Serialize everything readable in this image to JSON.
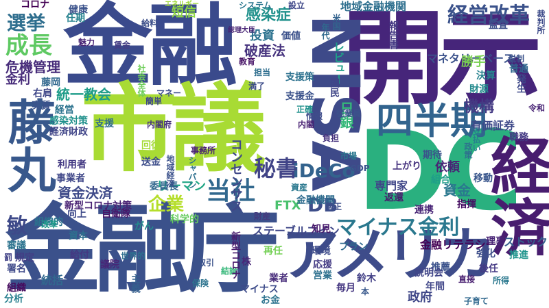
{
  "cloud": {
    "words": [
      {
        "text": "金融",
        "color": "#3a4a8c"
      },
      {
        "text": "開示",
        "color": "#46257a"
      },
      {
        "text": "市議",
        "color": "#a8db34"
      },
      {
        "text": "DC",
        "color": "#2ab07f"
      },
      {
        "text": "金融庁",
        "color": "#3b518b"
      },
      {
        "text": "NISA",
        "color": "#3e4a89"
      },
      {
        "text": "経済",
        "color": "#481d6f"
      },
      {
        "text": "アメリカ",
        "color": "#3e4c8a"
      },
      {
        "text": "藤丸",
        "color": "#38588c"
      },
      {
        "text": "四半期",
        "color": "#32648e"
      },
      {
        "text": "経営改革",
        "color": "#3b528b"
      },
      {
        "text": "マイナス金利",
        "color": "#2a788e"
      },
      {
        "text": "iDeCo",
        "color": "#33638d"
      },
      {
        "text": "秘書",
        "color": "#414487"
      },
      {
        "text": "当社",
        "color": "#31688e"
      },
      {
        "text": "DB",
        "color": "#3d4e8a"
      },
      {
        "text": "企業",
        "color": "#b5de2b"
      },
      {
        "text": "成長",
        "color": "#5ec962"
      },
      {
        "text": "選挙",
        "color": "#2e6e8e"
      },
      {
        "text": "地域金融機関",
        "color": "#2e6f8e"
      },
      {
        "text": "マネタリーベース",
        "color": "#3b528b"
      },
      {
        "text": "危機管理",
        "color": "#472c7a"
      },
      {
        "text": "感染症",
        "color": "#21918c"
      },
      {
        "text": "破産法",
        "color": "#46337e"
      },
      {
        "text": "投資",
        "color": "#2c728e"
      },
      {
        "text": "短信",
        "color": "#8fd744"
      },
      {
        "text": "統一教会",
        "color": "#1e9c89"
      },
      {
        "text": "敏",
        "color": "#3e4989"
      },
      {
        "text": "機構",
        "color": "#443a83"
      },
      {
        "text": "日銀",
        "color": "#35b779"
      },
      {
        "text": "資金決済",
        "color": "#3e4a89"
      },
      {
        "text": "コンセンサス",
        "color": "#3f4788"
      },
      {
        "text": "FTX",
        "color": "#4ac16d"
      },
      {
        "text": "金利",
        "color": "#472c7a"
      },
      {
        "text": "勝手",
        "color": "#7ad151"
      },
      {
        "text": "レビュー",
        "color": "#1fa088"
      },
      {
        "text": "有価証券",
        "color": "#3e4989"
      },
      {
        "text": "ステーブルコイン",
        "color": "#3f4788"
      },
      {
        "text": "新型コロナ対策",
        "color": "#482173"
      },
      {
        "text": "金融リテラシー",
        "color": "#440154"
      },
      {
        "text": "リーマン",
        "color": "#21a685"
      },
      {
        "text": "健康",
        "color": "#3b528b"
      },
      {
        "text": "コロナ",
        "color": "#440154"
      },
      {
        "text": "任期",
        "color": "#26828e"
      },
      {
        "text": "株",
        "color": "#482878"
      },
      {
        "text": "政府",
        "color": "#3f4788"
      },
      {
        "text": "資金",
        "color": "#2a788e"
      },
      {
        "text": "依頼",
        "color": "#482475"
      },
      {
        "text": "組合",
        "color": "#1f9e89"
      },
      {
        "text": "移動",
        "color": "#39568c"
      },
      {
        "text": "返還",
        "color": "#481b6d"
      },
      {
        "text": "専門家",
        "color": "#404688"
      },
      {
        "text": "指揮",
        "color": "#471063"
      },
      {
        "text": "ストック",
        "color": "#35608d"
      },
      {
        "text": "推進",
        "color": "#1f948c"
      },
      {
        "text": "強化",
        "color": "#3d4e8a"
      },
      {
        "text": "後任",
        "color": "#443983"
      },
      {
        "text": "理事",
        "color": "#482475"
      },
      {
        "text": "推薦",
        "color": "#3b528b"
      },
      {
        "text": "直接",
        "color": "#481f70"
      },
      {
        "text": "所得",
        "color": "#2a788e"
      },
      {
        "text": "年間",
        "color": "#404688"
      },
      {
        "text": "子育て",
        "color": "#31688e"
      },
      {
        "text": "毎月",
        "color": "#453781"
      },
      {
        "text": "お金",
        "color": "#2c728e"
      },
      {
        "text": "業者",
        "color": "#472c7a"
      },
      {
        "text": "鈴木",
        "color": "#424086"
      },
      {
        "text": "本",
        "color": "#38588c"
      },
      {
        "text": "応援",
        "color": "#443b84"
      },
      {
        "text": "営業",
        "color": "#2d708e"
      },
      {
        "text": "マイナス",
        "color": "#3e4c8a"
      },
      {
        "text": "取引",
        "color": "#3b528b"
      },
      {
        "text": "保険",
        "color": "#2c738e"
      },
      {
        "text": "結論",
        "color": "#35b779"
      },
      {
        "text": "世界的",
        "color": "#2e6e8e"
      },
      {
        "text": "議院",
        "color": "#482677"
      },
      {
        "text": "給付",
        "color": "#453882"
      },
      {
        "text": "資本",
        "color": "#2e6f8e"
      },
      {
        "text": "統括",
        "color": "#31688e"
      },
      {
        "text": "審議",
        "color": "#2c738e"
      },
      {
        "text": "規定",
        "color": "#433e85"
      },
      {
        "text": "署名",
        "color": "#3e4989"
      },
      {
        "text": "主義",
        "color": "#355f8d"
      },
      {
        "text": "分析",
        "color": "#277f8e"
      },
      {
        "text": "組織",
        "color": "#460b5e"
      },
      {
        "text": "組織的",
        "color": "#2c728e"
      },
      {
        "text": "向上",
        "color": "#3e4a89"
      },
      {
        "text": "改革",
        "color": "#1f9a8a"
      },
      {
        "text": "罰",
        "color": "#414287"
      },
      {
        "text": "委員長",
        "color": "#31688e"
      },
      {
        "text": "自衛隊",
        "color": "#481769"
      },
      {
        "text": "科学的",
        "color": "#65cb5e"
      },
      {
        "text": "がん",
        "color": "#238a8d"
      },
      {
        "text": "資産",
        "color": "#2a788e"
      },
      {
        "text": "金融機関",
        "color": "#2f6c8e"
      },
      {
        "text": "上がり",
        "color": "#46327e"
      },
      {
        "text": "期待",
        "color": "#3b528b"
      },
      {
        "text": "連携",
        "color": "#482576"
      },
      {
        "text": "知見",
        "color": "#481a6c"
      },
      {
        "text": "プラン",
        "color": "#306a8e"
      },
      {
        "text": "環境",
        "color": "#3e4c8a"
      },
      {
        "text": "再任",
        "color": "#74d055"
      },
      {
        "text": "説明会",
        "color": "#404588"
      },
      {
        "text": "新型コロナ",
        "color": "#481b6d"
      },
      {
        "text": "財産",
        "color": "#44397d"
      },
      {
        "text": "送金",
        "color": "#3d4d8a"
      },
      {
        "text": "回復",
        "color": "#a5db36"
      },
      {
        "text": "事務所",
        "color": "#482173"
      },
      {
        "text": "地域経済",
        "color": "#3b518b"
      },
      {
        "text": "シャパン",
        "color": "#2d708e"
      },
      {
        "text": "内閣府",
        "color": "#46327e"
      },
      {
        "text": "利用者",
        "color": "#443a83"
      },
      {
        "text": "事業者",
        "color": "#3f4788"
      },
      {
        "text": "支援",
        "color": "#2f6b8e"
      },
      {
        "text": "感染対策",
        "color": "#21918c"
      },
      {
        "text": "経済財政",
        "color": "#404588"
      },
      {
        "text": "経営",
        "color": "#2c738e"
      },
      {
        "text": "実質",
        "color": "#3b528b"
      },
      {
        "text": "右肩",
        "color": "#3f4788"
      },
      {
        "text": "藤岡",
        "color": "#31688e"
      },
      {
        "text": "簡単",
        "color": "#3f4889"
      },
      {
        "text": "社会全体",
        "color": "#6ece58"
      },
      {
        "text": "マネー",
        "color": "#3d4e8a"
      },
      {
        "text": "魅力",
        "color": "#482475"
      },
      {
        "text": "賃金",
        "color": "#433d84"
      },
      {
        "text": "給料",
        "color": "#3c4f8a"
      },
      {
        "text": "教育",
        "color": "#481467"
      },
      {
        "text": "担当",
        "color": "#2e6e8e"
      },
      {
        "text": "満了",
        "color": "#3d4d8a"
      },
      {
        "text": "支援策",
        "color": "#2c718e"
      },
      {
        "text": "支援金",
        "color": "#3b528b"
      },
      {
        "text": "価値",
        "color": "#3b518b"
      },
      {
        "text": "システム",
        "color": "#2a768e"
      },
      {
        "text": "設立",
        "color": "#3f4889"
      },
      {
        "text": "米国",
        "color": "#33638d"
      },
      {
        "text": "年代",
        "color": "#306a8e"
      },
      {
        "text": "監査",
        "color": "#3d4e8a"
      },
      {
        "text": "財源",
        "color": "#238a8d"
      },
      {
        "text": "普通",
        "color": "#31688e"
      },
      {
        "text": "税制",
        "color": "#3b528b"
      },
      {
        "text": "発生",
        "color": "#3e4989"
      },
      {
        "text": "令和",
        "color": "#482475"
      },
      {
        "text": "職務",
        "color": "#443983"
      },
      {
        "text": "支払い",
        "color": "#26818e"
      },
      {
        "text": "政策",
        "color": "#2e6f8e"
      },
      {
        "text": "従業員",
        "color": "#3b528b"
      },
      {
        "text": "情報",
        "color": "#3e4c8a"
      },
      {
        "text": "内閣",
        "color": "#482173"
      },
      {
        "text": "負担",
        "color": "#46337e"
      },
      {
        "text": "正確",
        "color": "#21918c"
      },
      {
        "text": "国民",
        "color": "#404688"
      },
      {
        "text": "市場",
        "color": "#2a788e"
      },
      {
        "text": "GDP",
        "color": "#3b528b"
      },
      {
        "text": "適正",
        "color": "#3d4e8a"
      },
      {
        "text": "エネルギー",
        "color": "#a0da39"
      },
      {
        "text": "総理大臣",
        "color": "#482475"
      },
      {
        "text": "報告書",
        "color": "#443983"
      },
      {
        "text": "決算",
        "color": "#26828e"
      },
      {
        "text": "裁判所",
        "color": "#3e4c8a"
      }
    ]
  }
}
